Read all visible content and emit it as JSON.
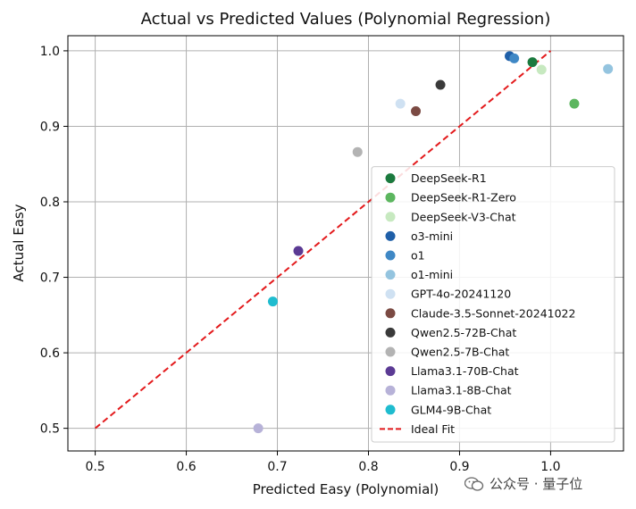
{
  "chart_data": {
    "type": "scatter",
    "title": "Actual vs Predicted Values (Polynomial Regression)",
    "xlabel": "Predicted Easy (Polynomial)",
    "ylabel": "Actual Easy",
    "xlim": [
      0.47,
      1.08
    ],
    "ylim": [
      0.47,
      1.02
    ],
    "xticks": [
      "0.5",
      "0.6",
      "0.7",
      "0.8",
      "0.9",
      "1.0"
    ],
    "yticks": [
      "0.5",
      "0.6",
      "0.7",
      "0.8",
      "0.9",
      "1.0"
    ],
    "grid": true,
    "legend_position": "lower-right",
    "series": [
      {
        "name": "DeepSeek-R1",
        "color": "#1b7a3e",
        "x": 0.98,
        "y": 0.985
      },
      {
        "name": "DeepSeek-R1-Zero",
        "color": "#5cb65f",
        "x": 1.026,
        "y": 0.93
      },
      {
        "name": "DeepSeek-V3-Chat",
        "color": "#c7e9c0",
        "x": 0.99,
        "y": 0.975
      },
      {
        "name": "o3-mini",
        "color": "#1f5fa8",
        "x": 0.955,
        "y": 0.993
      },
      {
        "name": "o1",
        "color": "#3f88c5",
        "x": 0.96,
        "y": 0.99
      },
      {
        "name": "o1-mini",
        "color": "#94c4df",
        "x": 1.063,
        "y": 0.976
      },
      {
        "name": "GPT-4o-20241120",
        "color": "#cfe1f2",
        "x": 0.835,
        "y": 0.93
      },
      {
        "name": "Claude-3.5-Sonnet-20241022",
        "color": "#7b4a43",
        "x": 0.852,
        "y": 0.92
      },
      {
        "name": "Qwen2.5-72B-Chat",
        "color": "#3a3a3a",
        "x": 0.879,
        "y": 0.955
      },
      {
        "name": "Qwen2.5-7B-Chat",
        "color": "#b3b3b3",
        "x": 0.788,
        "y": 0.866
      },
      {
        "name": "Llama3.1-70B-Chat",
        "color": "#5b3a94",
        "x": 0.723,
        "y": 0.735
      },
      {
        "name": "Llama3.1-8B-Chat",
        "color": "#b7b2d8",
        "x": 0.679,
        "y": 0.5
      },
      {
        "name": "GLM4-9B-Chat",
        "color": "#1fbccf",
        "x": 0.695,
        "y": 0.668
      }
    ],
    "ideal_fit": {
      "name": "Ideal Fit",
      "color": "#e31a1c",
      "x": [
        0.5,
        1.0
      ],
      "y": [
        0.5,
        1.0
      ]
    }
  },
  "watermark": {
    "text": "公众号 · 量子位",
    "icon": "wechat-icon"
  }
}
